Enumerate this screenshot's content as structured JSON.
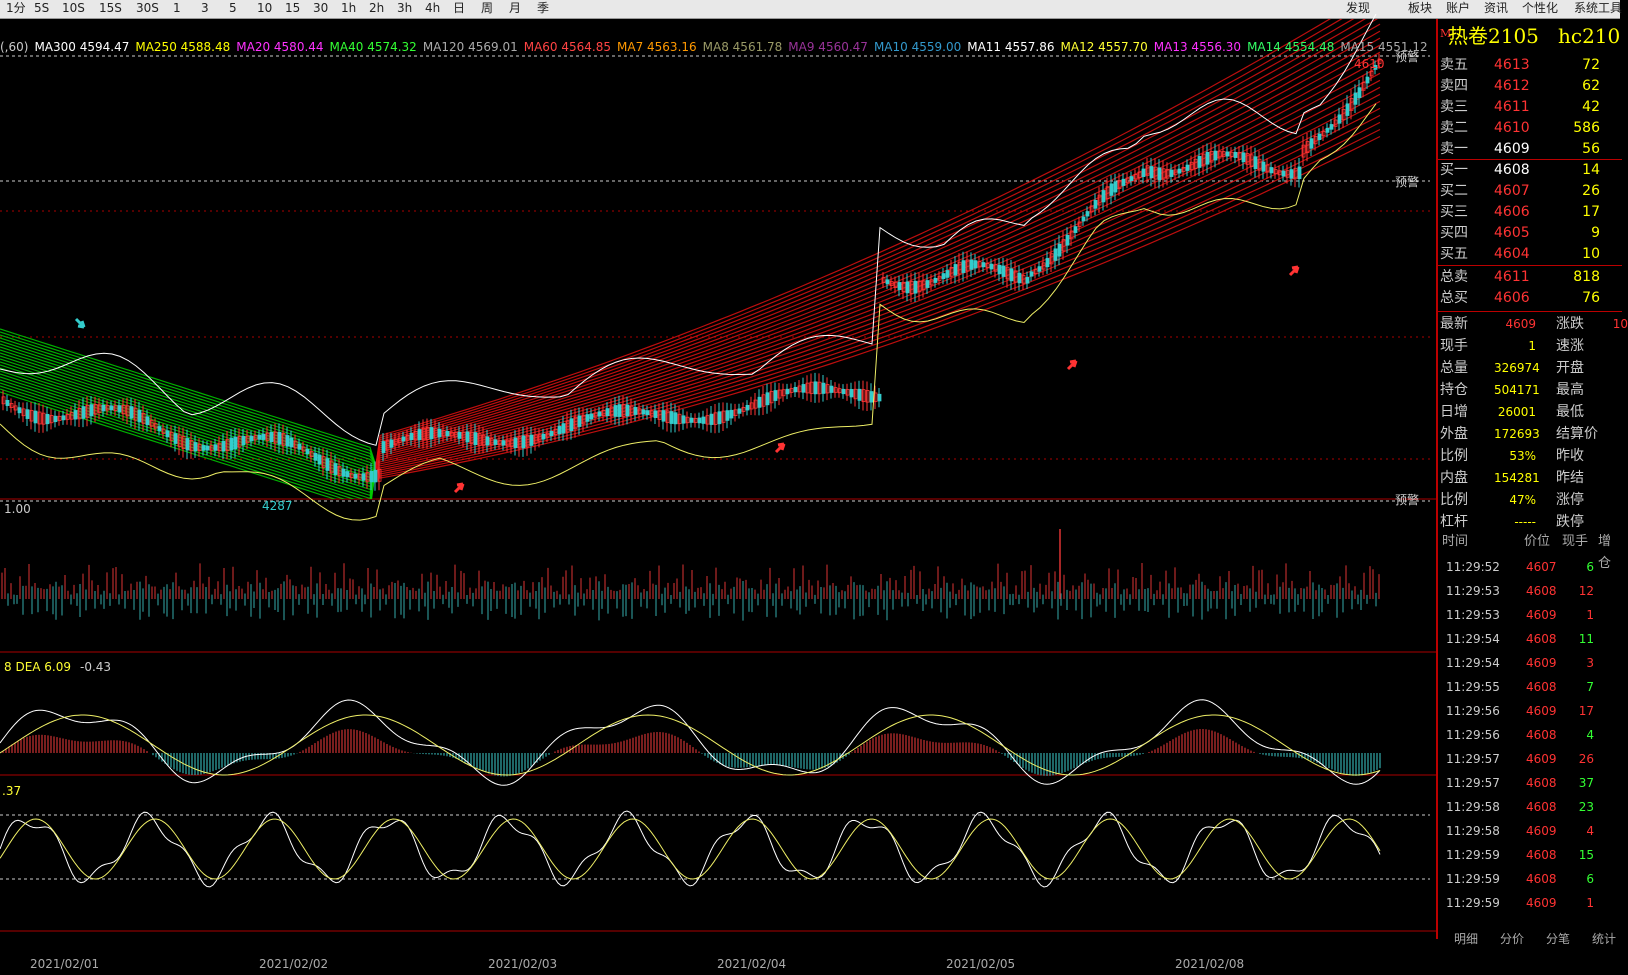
{
  "toolbar": {
    "periods": [
      "1分",
      "5S",
      "10S",
      "15S",
      "30S",
      "1",
      "3",
      "5",
      "10",
      "15",
      "30",
      "1h",
      "2h",
      "3h",
      "4h",
      "日",
      "周",
      "月",
      "季"
    ],
    "right_items": [
      "发现",
      "板块",
      "账户",
      "资讯",
      "个性化",
      "系统工具"
    ]
  },
  "ma_line": [
    {
      "label": "(,60)",
      "color": "#cccccc"
    },
    {
      "label": "MA300 4594.47",
      "color": "#ffffff"
    },
    {
      "label": "MA250 4588.48",
      "color": "#ffff00"
    },
    {
      "label": "MA20 4580.44",
      "color": "#ff33ff"
    },
    {
      "label": "MA40 4574.32",
      "color": "#33ff33"
    },
    {
      "label": "MA120 4569.01",
      "color": "#aaaaaa"
    },
    {
      "label": "MA60 4564.85",
      "color": "#ff4444"
    },
    {
      "label": "MA7 4563.16",
      "color": "#ff9900"
    },
    {
      "label": "MA8 4561.78",
      "color": "#999966"
    },
    {
      "label": "MA9 4560.47",
      "color": "#993399"
    },
    {
      "label": "MA10 4559.00",
      "color": "#3399cc"
    },
    {
      "label": "MA11 4557.86",
      "color": "#ffffff"
    },
    {
      "label": "MA12 4557.70",
      "color": "#ffff33"
    },
    {
      "label": "MA13 4556.30",
      "color": "#ff33ff"
    },
    {
      "label": "MA14 4554.48",
      "color": "#33ff66"
    },
    {
      "label": "MA15 4551.12",
      "color": "#aaaaaa"
    }
  ],
  "chart_labels": {
    "alert": "预警",
    "low_mark": "4287",
    "high_mark": "4610",
    "vol_label": "1.00",
    "macd_label": "8  DEA 6.09",
    "macd_value": "-0.43",
    "kdj_label": ".37"
  },
  "dates": [
    "2021/02/01",
    "2021/02/02",
    "2021/02/03",
    "2021/02/04",
    "2021/02/05",
    "2021/02/08"
  ],
  "quote": {
    "title": "热卷2105",
    "code": "hc210",
    "mark": "M",
    "asks": [
      {
        "label": "卖五",
        "price": "4613",
        "vol": "72"
      },
      {
        "label": "卖四",
        "price": "4612",
        "vol": "62"
      },
      {
        "label": "卖三",
        "price": "4611",
        "vol": "42"
      },
      {
        "label": "卖二",
        "price": "4610",
        "vol": "586"
      },
      {
        "label": "卖一",
        "price": "4609",
        "vol": "56"
      }
    ],
    "bids": [
      {
        "label": "买一",
        "price": "4608",
        "vol": "14"
      },
      {
        "label": "买二",
        "price": "4607",
        "vol": "26"
      },
      {
        "label": "买三",
        "price": "4606",
        "vol": "17"
      },
      {
        "label": "买四",
        "price": "4605",
        "vol": "9"
      },
      {
        "label": "买五",
        "price": "4604",
        "vol": "10"
      }
    ],
    "totals": [
      {
        "label": "总卖",
        "price": "4611",
        "vol": "818"
      },
      {
        "label": "总买",
        "price": "4606",
        "vol": "76"
      }
    ],
    "stats": [
      {
        "label": "最新",
        "value": "4609",
        "label2": "涨跌",
        "value2": "10"
      },
      {
        "label": "现手",
        "value": "1",
        "label2": "速涨",
        "value2": ""
      },
      {
        "label": "总量",
        "value": "326974",
        "label2": "开盘",
        "value2": ""
      },
      {
        "label": "持仓",
        "value": "504171",
        "label2": "最高",
        "value2": ""
      },
      {
        "label": "日增",
        "value": "26001",
        "label2": "最低",
        "value2": ""
      },
      {
        "label": "外盘",
        "value": "172693",
        "label2": "结算价",
        "value2": ""
      },
      {
        "label": "比例",
        "value": "53%",
        "label2": "昨收",
        "value2": ""
      },
      {
        "label": "内盘",
        "value": "154281",
        "label2": "昨结",
        "value2": ""
      },
      {
        "label": "比例",
        "value": "47%",
        "label2": "涨停",
        "value2": ""
      },
      {
        "label": "杠杆",
        "value": "-----",
        "label2": "跌停",
        "value2": ""
      }
    ],
    "tick_header": {
      "time": "时间",
      "price": "价位",
      "vol": "现手",
      "oi": "增仓"
    },
    "ticks": [
      {
        "time": "11:29:52",
        "price": "4607",
        "vol": "6",
        "vcolor": "#33ff33"
      },
      {
        "time": "11:29:53",
        "price": "4608",
        "vol": "12",
        "vcolor": "#ff3333"
      },
      {
        "time": "11:29:53",
        "price": "4609",
        "vol": "1",
        "vcolor": "#ff3333"
      },
      {
        "time": "11:29:54",
        "price": "4608",
        "vol": "11",
        "vcolor": "#33ff33"
      },
      {
        "time": "11:29:54",
        "price": "4609",
        "vol": "3",
        "vcolor": "#ff3333"
      },
      {
        "time": "11:29:55",
        "price": "4608",
        "vol": "7",
        "vcolor": "#33ff33"
      },
      {
        "time": "11:29:56",
        "price": "4609",
        "vol": "17",
        "vcolor": "#ff3333"
      },
      {
        "time": "11:29:56",
        "price": "4608",
        "vol": "4",
        "vcolor": "#33ff33"
      },
      {
        "time": "11:29:57",
        "price": "4609",
        "vol": "26",
        "vcolor": "#ff3333"
      },
      {
        "time": "11:29:57",
        "price": "4608",
        "vol": "37",
        "vcolor": "#33ff33"
      },
      {
        "time": "11:29:58",
        "price": "4608",
        "vol": "23",
        "vcolor": "#33ff33"
      },
      {
        "time": "11:29:58",
        "price": "4609",
        "vol": "4",
        "vcolor": "#ff3333"
      },
      {
        "time": "11:29:59",
        "price": "4608",
        "vol": "15",
        "vcolor": "#33ff33"
      },
      {
        "time": "11:29:59",
        "price": "4608",
        "vol": "6",
        "vcolor": "#33ff33"
      },
      {
        "time": "11:29:59",
        "price": "4609",
        "vol": "1",
        "vcolor": "#ff3333"
      }
    ],
    "bottom_tabs": [
      "明细",
      "分价",
      "分笔",
      "统计"
    ]
  }
}
